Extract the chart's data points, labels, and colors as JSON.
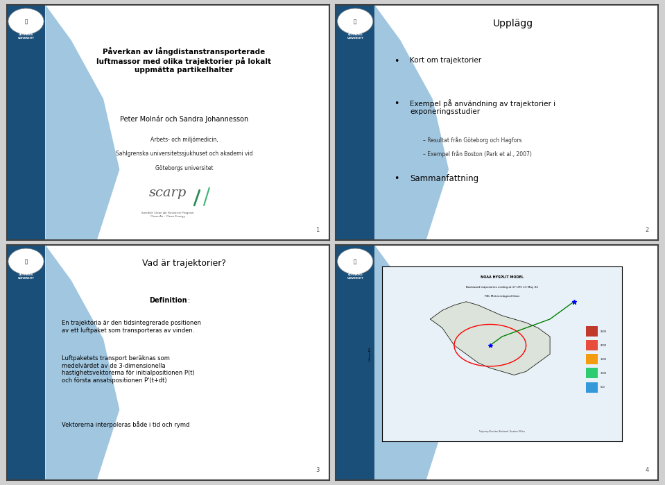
{
  "bg_color": "#d0d0d0",
  "slide_bg": "#ffffff",
  "slide_border": "#404040",
  "blue_bar_color": "#1a5276",
  "blue_gradient_light": "#aec6e8",
  "slide1": {
    "title": "Påverkan av långdistanstransporterade\nluftmassor med olika trajektorier på lokalt\nuppmätta partikelhalter",
    "author": "Peter Molnár och Sandra Johannesson",
    "affiliation1": "Arbets- och miljömedicin,",
    "affiliation2": "Sahlgrenska universitetssjukhuset och akademi vid",
    "affiliation3": "Göteborgs universitet",
    "page_num": "1"
  },
  "slide2": {
    "title": "Upplägg",
    "bullet1": "Kort om trajektorier",
    "bullet2": "Exempel på användning av trajektorier i\nexponeringsstudier",
    "sub1": "– Resultat från Göteborg och Hagfors",
    "sub2": "– Exempel från Boston (Park et al., 2007)",
    "bullet3": "Sammanfattning",
    "page_num": "2"
  },
  "slide3": {
    "title": "Vad är trajektorier?",
    "def_bold": "Definition",
    "def_colon": ":",
    "para1": "En trajektoria är den tidsintegrerade positionen\nav ett luftpaket som transporteras av vinden.",
    "para2": "Luftpaketets transport beräknas som\nmedelvärdet av de 3-dimensionella\nhastighetsvektorerna för initialpositionen P(t)\noch första ansatspositionen P'(t+dt)",
    "para3": "Vektorerna interpoleras både i tid och rymd",
    "page_num": "3"
  },
  "slide4": {
    "page_num": "4",
    "map_title": "NOAA HYSPLIT MODEL",
    "map_subtitle": "Backward trajectories ending at 17 UTC 13 May 02",
    "map_sub2": "FNL Meteorological Data"
  }
}
